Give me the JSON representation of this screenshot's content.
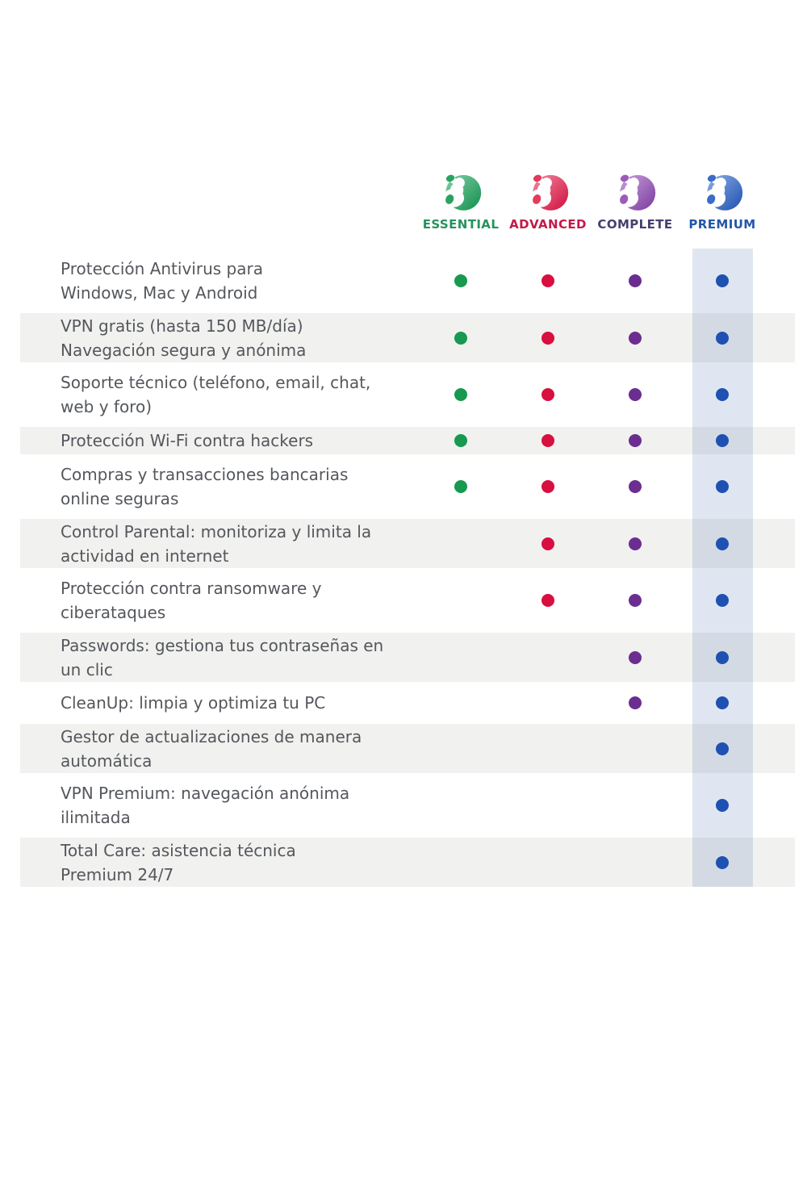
{
  "brand": {
    "plans": [
      {
        "name": "ESSENTIAL",
        "label_color": "#27925e",
        "dot_color": "#17994f",
        "logo": {
          "light": "#86d0a8",
          "main": "#2aa361",
          "dark": "#0f8f4c"
        }
      },
      {
        "name": "ADVANCED",
        "label_color": "#c21a4c",
        "dot_color": "#d80f3f",
        "logo": {
          "light": "#f48ba0",
          "main": "#e43a5d",
          "dark": "#ce0e3e"
        }
      },
      {
        "name": "COMPLETE",
        "label_color": "#45406e",
        "dot_color": "#6c2d90",
        "logo": {
          "light": "#c9a3dd",
          "main": "#9a5cba",
          "dark": "#7a3a9e"
        }
      },
      {
        "name": "PREMIUM",
        "label_color": "#2356a8",
        "dot_color": "#1c51b4",
        "logo": {
          "light": "#8fb0e4",
          "main": "#3a6cc8",
          "dark": "#1c4fb0"
        }
      }
    ]
  },
  "features": [
    {
      "lines": [
        "Protección Antivirus para",
        "Windows, Mac y Android"
      ],
      "availability": [
        true,
        true,
        true,
        true
      ]
    },
    {
      "lines": [
        "VPN gratis (hasta 150 MB/día)",
        "Navegación segura y anónima"
      ],
      "availability": [
        true,
        true,
        true,
        true
      ]
    },
    {
      "lines": [
        "Soporte técnico (teléfono, email, chat,",
        "web y foro)"
      ],
      "availability": [
        true,
        true,
        true,
        true
      ]
    },
    {
      "lines": [
        "Protección Wi-Fi contra hackers"
      ],
      "availability": [
        true,
        true,
        true,
        true
      ]
    },
    {
      "lines": [
        "Compras y transacciones bancarias",
        "online seguras"
      ],
      "availability": [
        true,
        true,
        true,
        true
      ]
    },
    {
      "lines": [
        "Control Parental: monitoriza y limita la",
        "actividad en internet"
      ],
      "availability": [
        false,
        true,
        true,
        true
      ]
    },
    {
      "lines": [
        "Protección contra ransomware y",
        "ciberataques"
      ],
      "availability": [
        false,
        true,
        true,
        true
      ]
    },
    {
      "lines": [
        "Passwords: gestiona tus contraseñas en",
        "un clic"
      ],
      "availability": [
        false,
        false,
        true,
        true
      ]
    },
    {
      "lines": [
        "CleanUp: limpia y optimiza tu PC"
      ],
      "availability": [
        false,
        false,
        true,
        true
      ]
    },
    {
      "lines": [
        "Gestor de actualizaciones de manera",
        "automática"
      ],
      "availability": [
        false,
        false,
        false,
        true
      ]
    },
    {
      "lines": [
        "VPN Premium: navegación anónima",
        "ilimitada"
      ],
      "availability": [
        false,
        false,
        false,
        true
      ]
    },
    {
      "lines": [
        "Total Care: asistencia técnica",
        "Premium 24/7"
      ],
      "availability": [
        false,
        false,
        false,
        true
      ]
    }
  ]
}
